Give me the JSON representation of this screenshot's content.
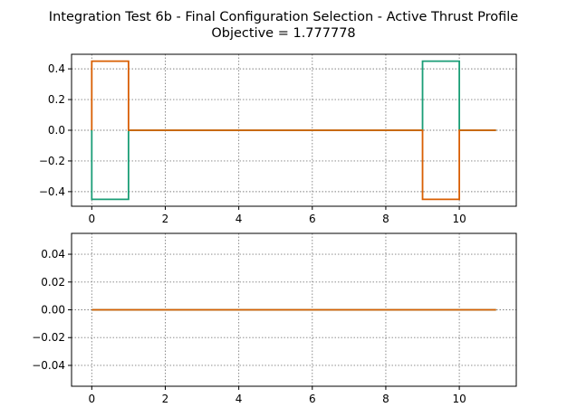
{
  "figure": {
    "title_line1": "Integration Test 6b - Final Configuration Selection - Active Thrust Profile",
    "title_line2": "Objective = 1.777778"
  },
  "colors": {
    "green": "#1b9e77",
    "orange": "#d95f02"
  },
  "chart_data": [
    {
      "type": "line",
      "step": "post",
      "xlim": [
        -0.55,
        11.55
      ],
      "ylim": [
        -0.495,
        0.495
      ],
      "xticks": [
        0,
        2,
        4,
        6,
        8,
        10
      ],
      "yticks": [
        -0.4,
        -0.2,
        0.0,
        0.2,
        0.4
      ],
      "xtick_labels": [
        "0",
        "2",
        "4",
        "6",
        "8",
        "10"
      ],
      "ytick_labels": [
        "−0.4",
        "−0.2",
        "0.0",
        "0.2",
        "0.4"
      ],
      "grid": true,
      "series": [
        {
          "color": "#1b9e77",
          "x": [
            0,
            1,
            9,
            10,
            11
          ],
          "y": [
            -0.45,
            0,
            0.45,
            0,
            0
          ]
        },
        {
          "color": "#d95f02",
          "x": [
            0,
            1,
            9,
            10,
            11
          ],
          "y": [
            0.45,
            0,
            -0.45,
            0,
            0
          ]
        }
      ]
    },
    {
      "type": "line",
      "step": "post",
      "xlim": [
        -0.55,
        11.55
      ],
      "ylim": [
        -0.055,
        0.055
      ],
      "xticks": [
        0,
        2,
        4,
        6,
        8,
        10
      ],
      "yticks": [
        -0.04,
        -0.02,
        0.0,
        0.02,
        0.04
      ],
      "xtick_labels": [
        "0",
        "2",
        "4",
        "6",
        "8",
        "10"
      ],
      "ytick_labels": [
        "−0.04",
        "−0.02",
        "0.00",
        "0.02",
        "0.04"
      ],
      "grid": true,
      "series": [
        {
          "color": "#1b9e77",
          "x": [
            0,
            11
          ],
          "y": [
            0,
            0
          ]
        },
        {
          "color": "#d95f02",
          "x": [
            0,
            11
          ],
          "y": [
            0,
            0
          ]
        }
      ]
    }
  ]
}
